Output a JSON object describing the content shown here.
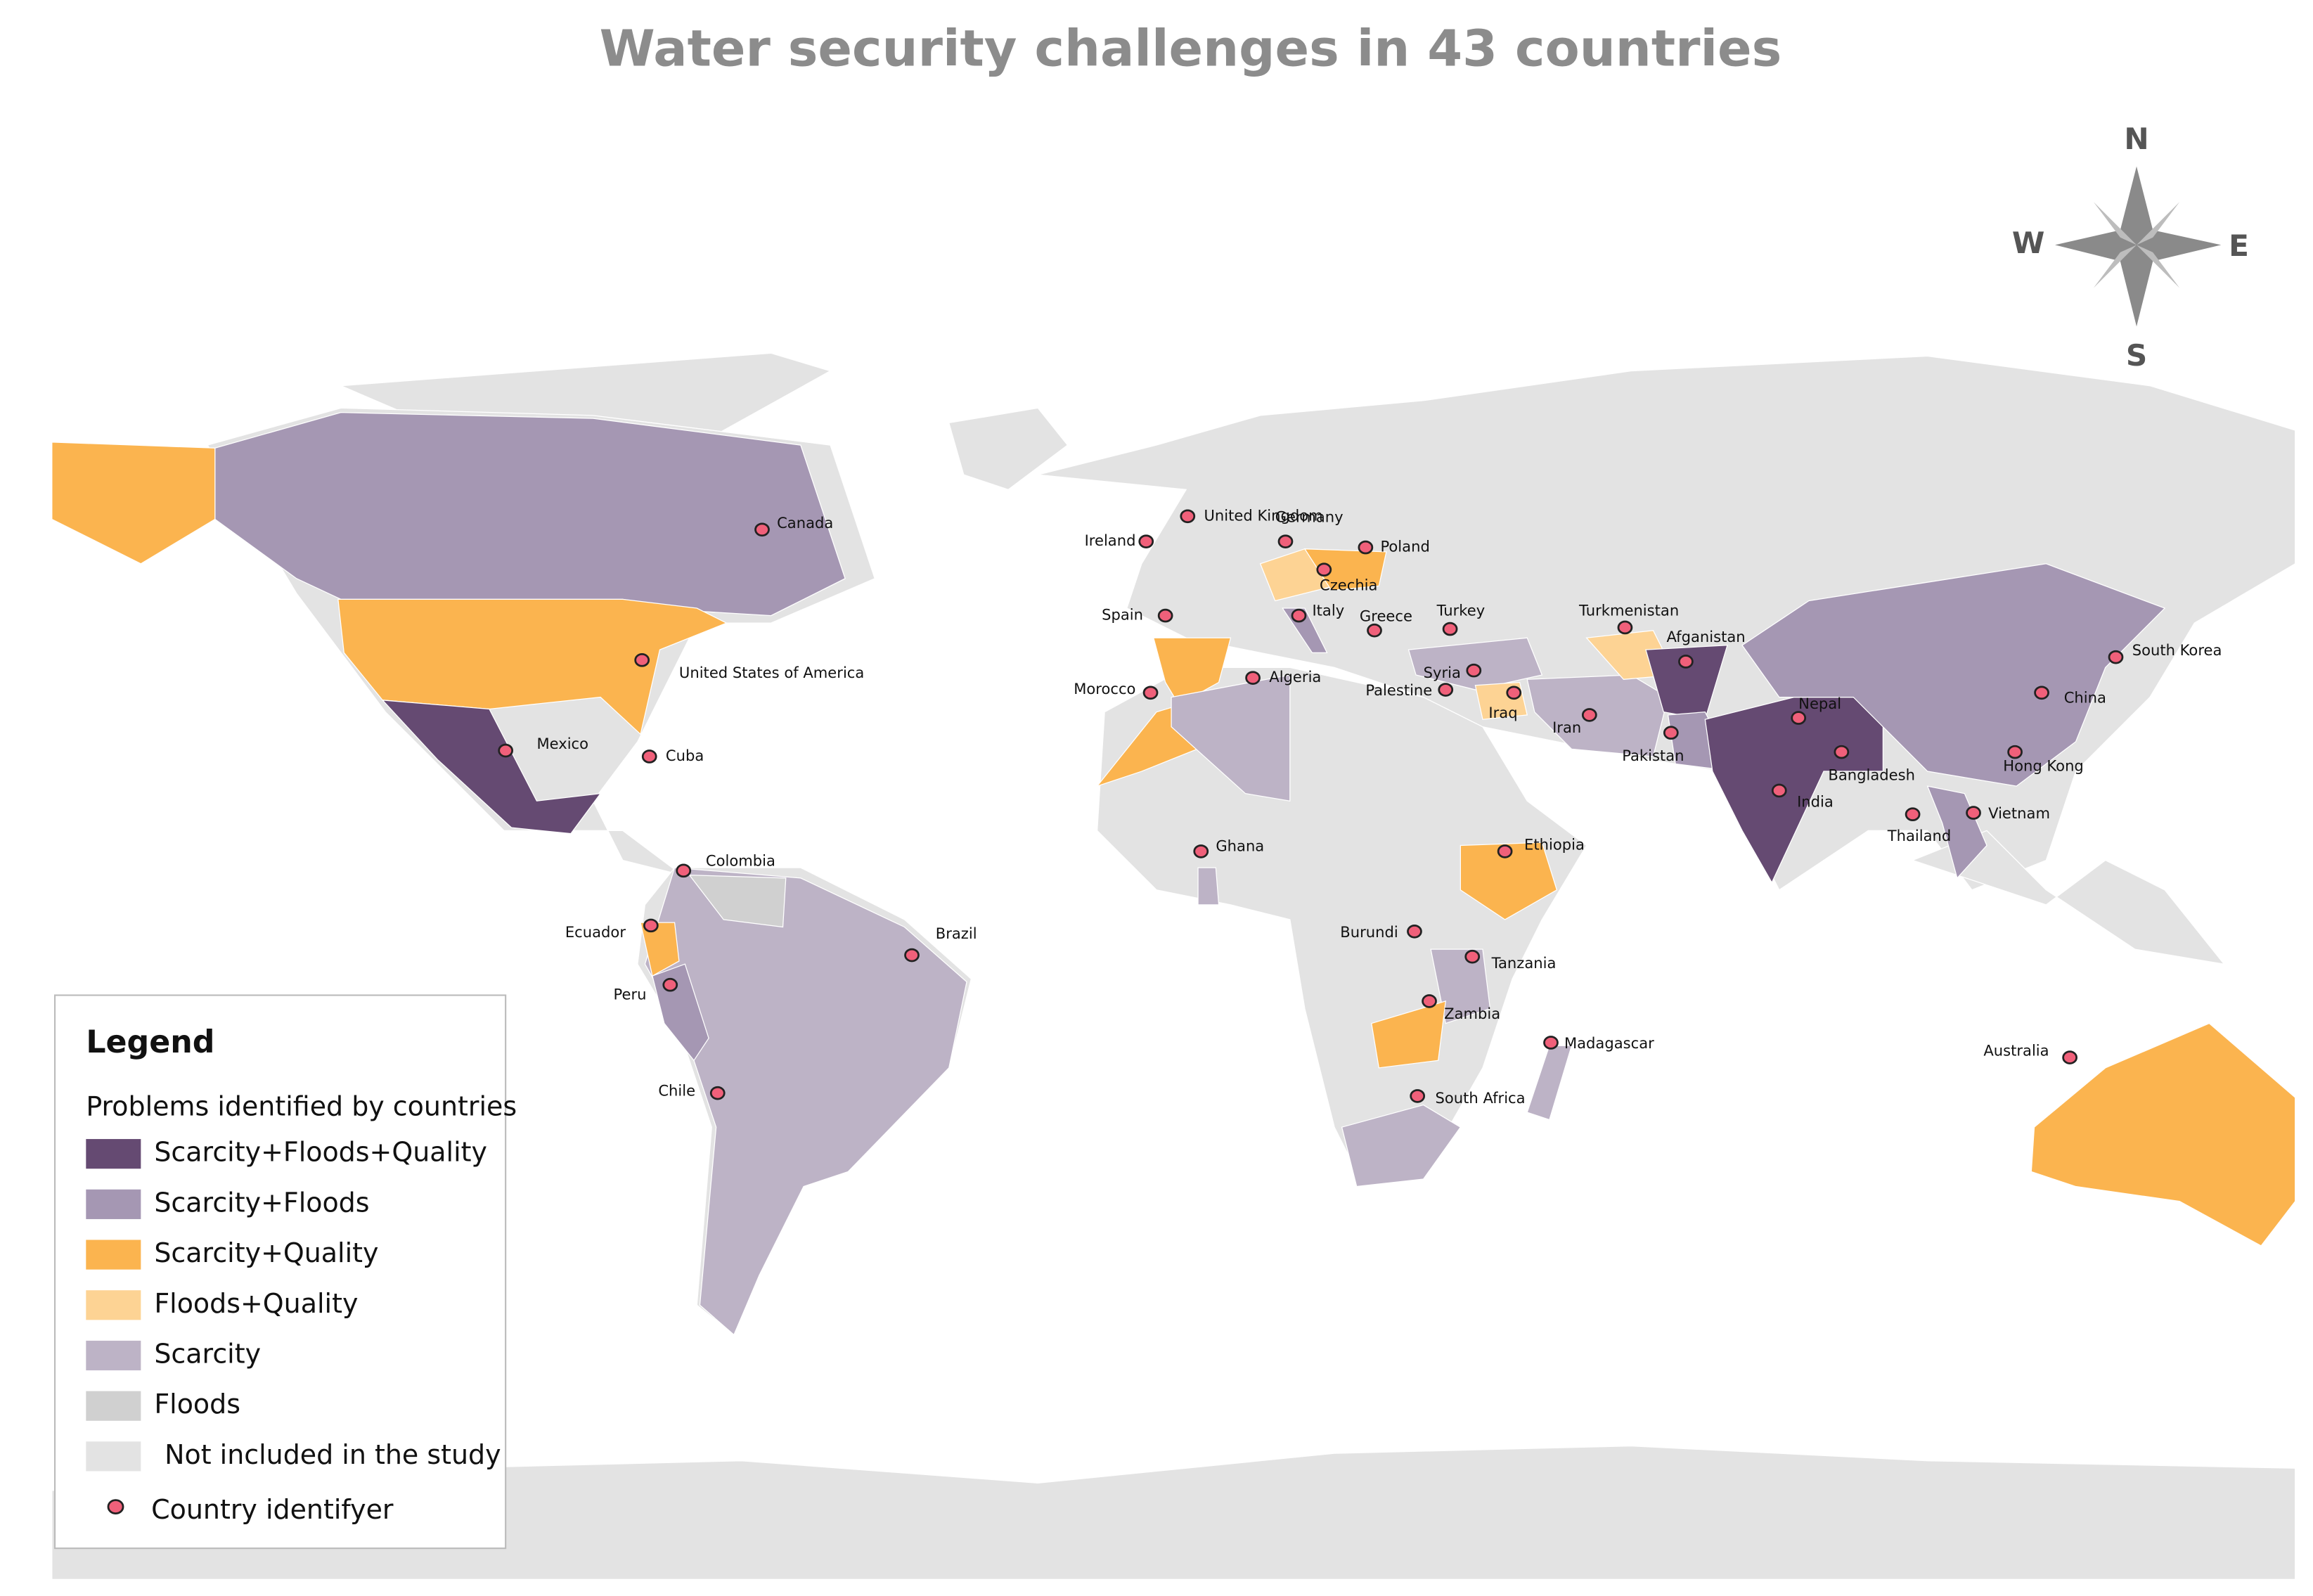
{
  "title": "Water security challenges in 43 countries",
  "compass": {
    "north": "N",
    "east": "E",
    "south": "S",
    "west": "W"
  },
  "legend": {
    "title": "Legend",
    "subtitle": "Problems identified by countries",
    "items": [
      {
        "label": "Scarcity+Floods+Quality",
        "color": "#654a72"
      },
      {
        "label": "Scarcity+Floods",
        "color": "#a597b3"
      },
      {
        "label": "Scarcity+Quality",
        "color": "#fbb44f"
      },
      {
        "label": "Floods+Quality",
        "color": "#fdd394"
      },
      {
        "label": "Scarcity",
        "color": "#bdb3c6"
      },
      {
        "label": "Floods",
        "color": "#d0d0d0"
      },
      {
        "label": "Not included in the study",
        "color": "#e3e3e3"
      }
    ],
    "marker_label": "Country identifyer",
    "marker_color": "#f0607a"
  },
  "countries": [
    "Canada",
    "United Kingdom",
    "Ireland",
    "Germany",
    "Poland",
    "Czechia",
    "Spain",
    "Italy",
    "Greece",
    "Turkey",
    "Turkmenistan",
    "Afganistan",
    "South Korea",
    "United States of America",
    "Morocco",
    "Algeria",
    "Syria",
    "Palestine",
    "Iraq",
    "Iran",
    "Pakistan",
    "Nepal",
    "China",
    "Mexico",
    "Cuba",
    "Bangladesh",
    "Hong Kong",
    "India",
    "Thailand",
    "Vietnam",
    "Ghana",
    "Ethiopia",
    "Colombia",
    "Ecuador",
    "Brazil",
    "Burundi",
    "Tanzania",
    "Peru",
    "Zambia",
    "Madagascar",
    "Australia",
    "Chile",
    "South Africa"
  ]
}
